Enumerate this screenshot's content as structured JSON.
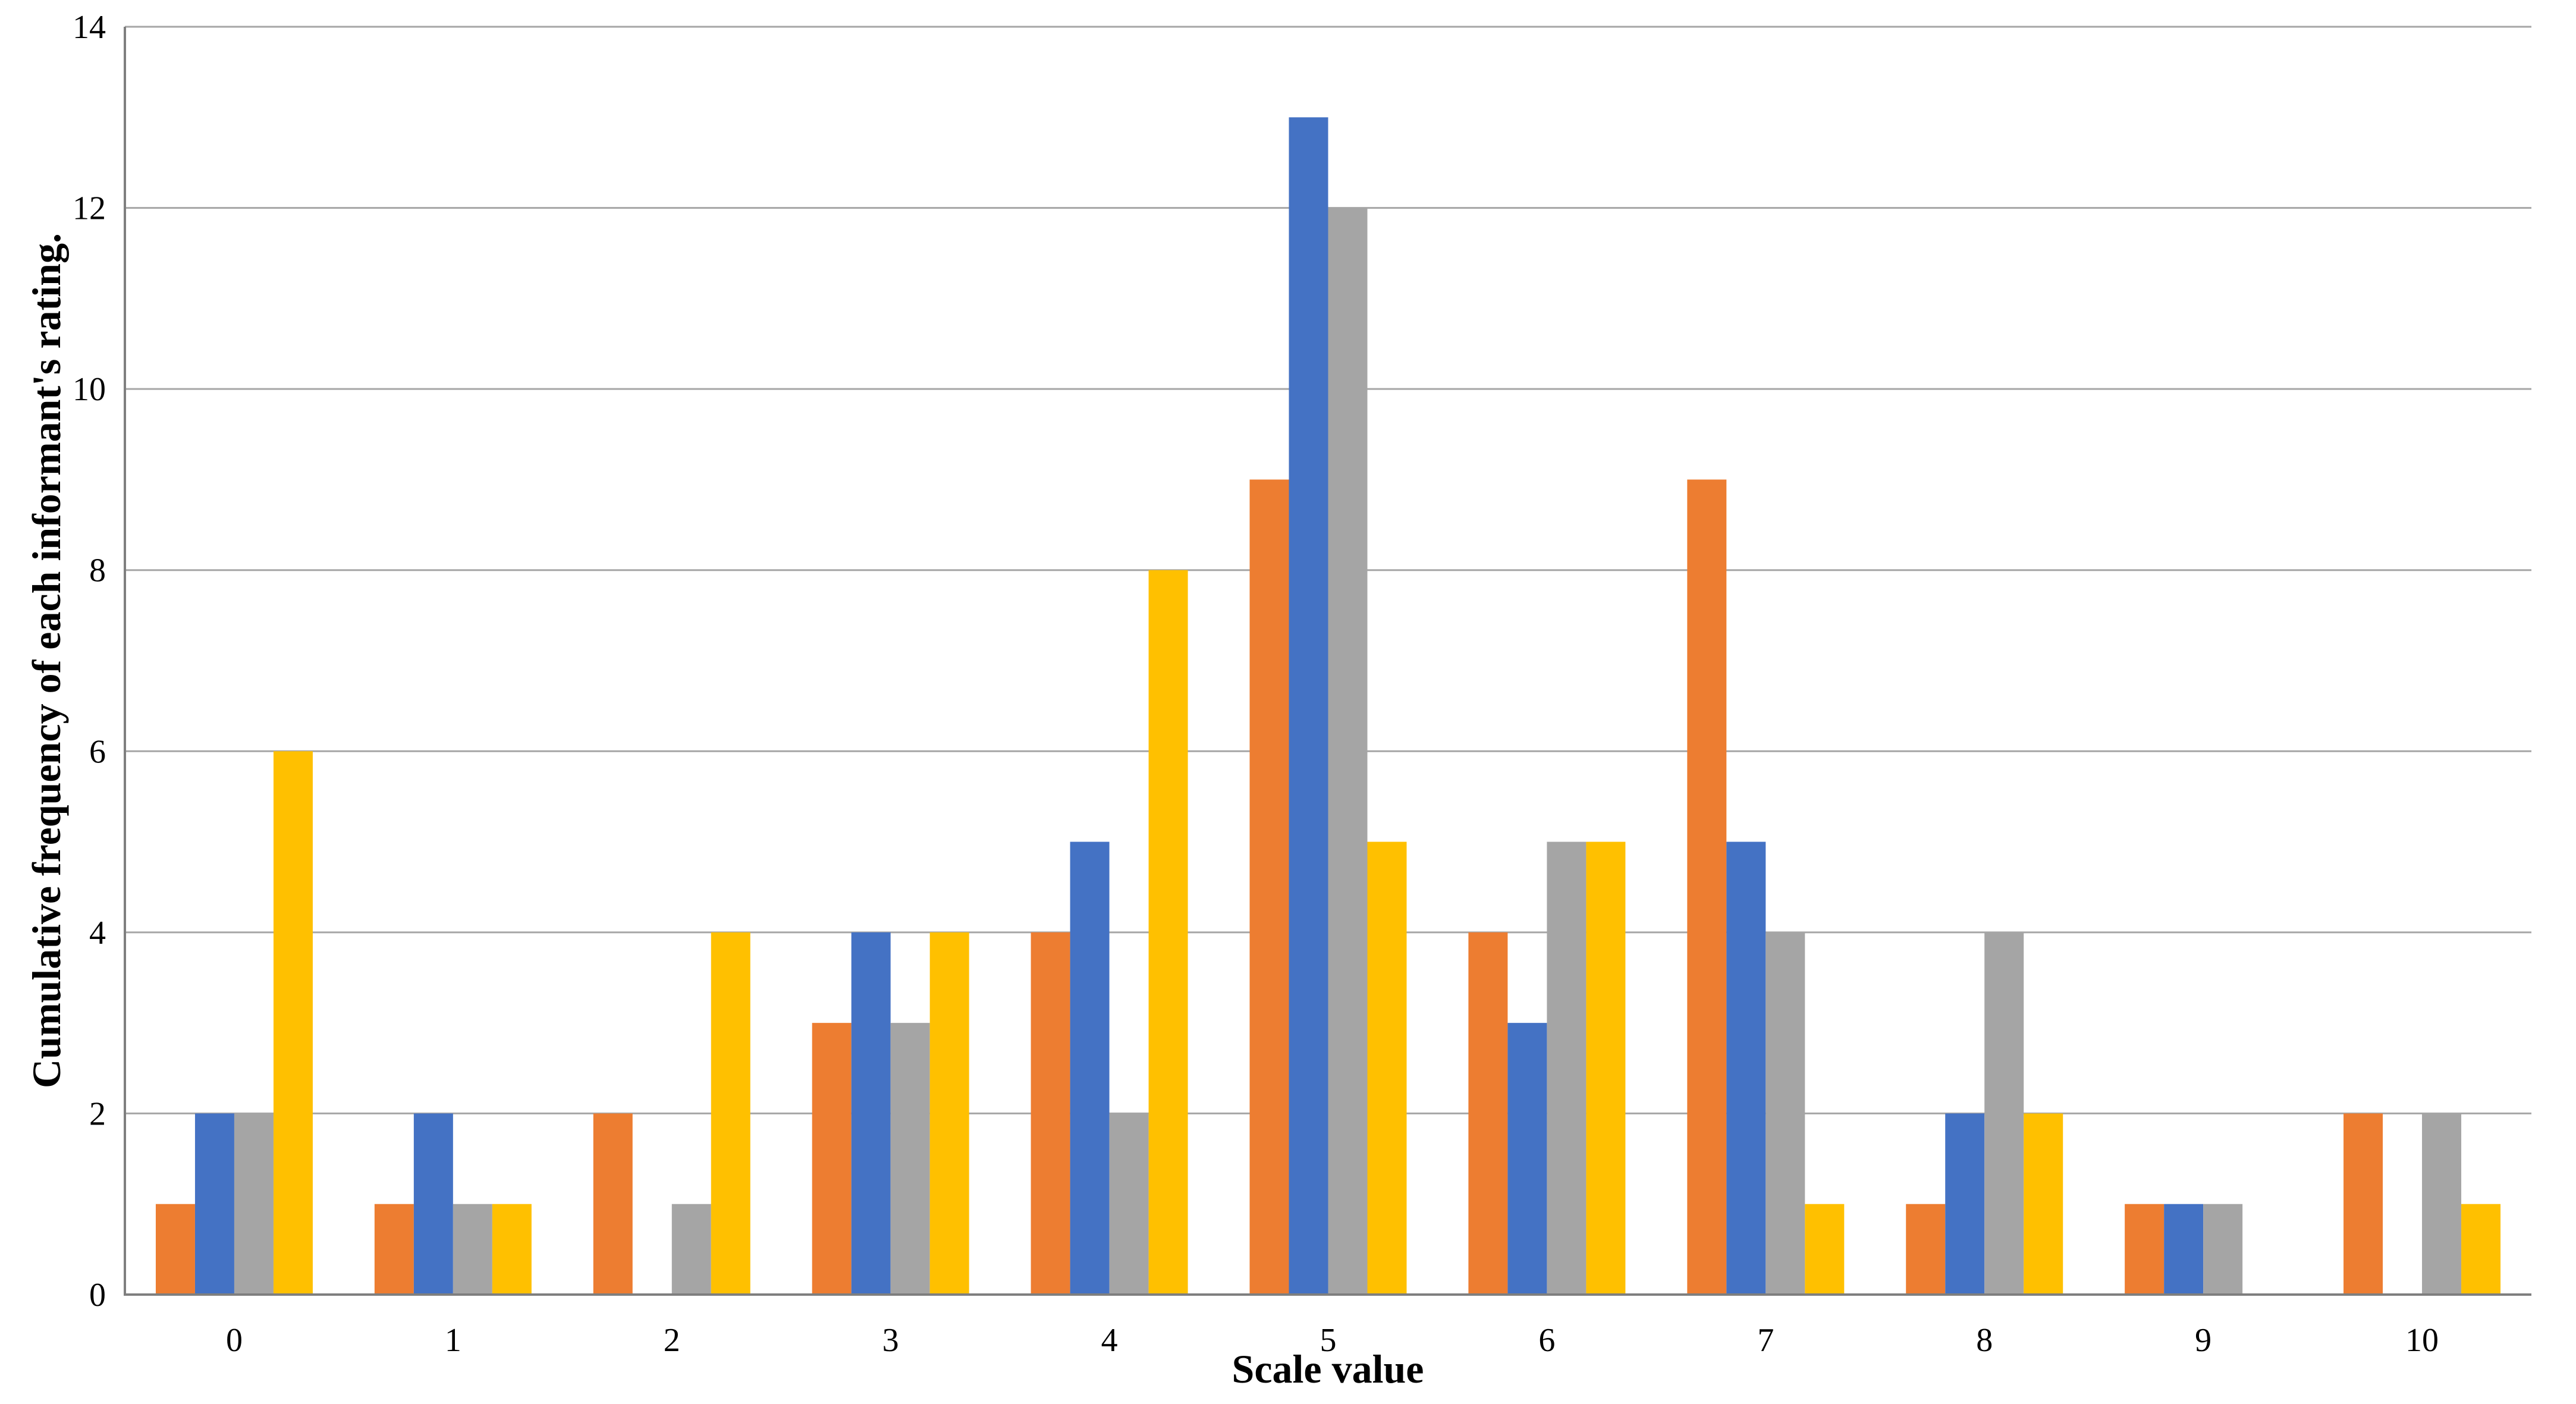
{
  "chart_data": {
    "type": "bar",
    "title": "",
    "xlabel": "Scale value",
    "ylabel": "Cumulative frequency of each informant's rating.",
    "categories": [
      "0",
      "1",
      "2",
      "3",
      "4",
      "5",
      "6",
      "7",
      "8",
      "9",
      "10"
    ],
    "series": [
      {
        "name": "orange-series",
        "color": "#ED7D31",
        "values": [
          1,
          1,
          2,
          3,
          4,
          9,
          4,
          9,
          1,
          1,
          2
        ]
      },
      {
        "name": "blue-series",
        "color": "#4472C4",
        "values": [
          2,
          2,
          0,
          4,
          5,
          13,
          3,
          5,
          2,
          1,
          0
        ]
      },
      {
        "name": "gray-series",
        "color": "#A5A5A5",
        "values": [
          2,
          1,
          1,
          3,
          2,
          12,
          5,
          4,
          4,
          1,
          2
        ]
      },
      {
        "name": "yellow-series",
        "color": "#FFC000",
        "values": [
          6,
          1,
          4,
          4,
          8,
          5,
          5,
          1,
          2,
          0,
          1
        ]
      }
    ],
    "ylim": [
      0,
      14
    ],
    "yticks": [
      0,
      2,
      4,
      6,
      8,
      10,
      12,
      14
    ],
    "grid": true,
    "legend_position": "none",
    "gridline_color": "#A6A6A6",
    "axis_color": "#7F7F7F",
    "background": "#FFFFFF",
    "text_color": "#000000"
  }
}
